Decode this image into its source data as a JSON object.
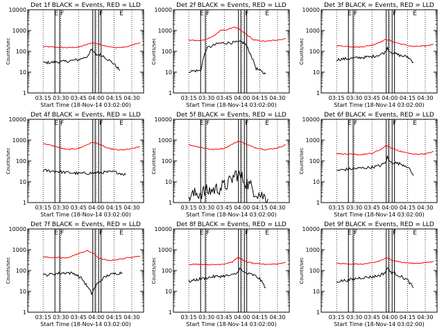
{
  "start_time_label": "Start Time (18-Nov-14 03:02:00)",
  "ylabel": "Counts/sec",
  "colors": {
    "events": "#000000",
    "lld": "#ff0000",
    "axis": "#000000"
  },
  "time_ticks": [
    "03:15",
    "03:30",
    "03:45",
    "04:00",
    "04:15",
    "04:30"
  ],
  "y_ticks": [
    "1",
    "10",
    "100",
    "1000",
    "10000"
  ],
  "chart_data": [
    {
      "type": "line",
      "title": "Det 1f BLACK = Events, RED = LLD",
      "xlabel": "Start Time (18-Nov-14 03:02:00)",
      "ylabel": "Counts/sec",
      "y_scale": "log",
      "xlim": [
        "03:02",
        "04:40"
      ],
      "ylim": [
        1,
        10000
      ],
      "grid": "dotted vertical lines at each time tick",
      "event_markers": [
        "03:25",
        "03:29",
        "03:57",
        "03:59",
        "04:02",
        "04:04"
      ],
      "segment_letters": [
        "E",
        "F",
        "F",
        "E"
      ],
      "series": [
        {
          "x": [
            "03:15",
            "03:25",
            "03:35",
            "03:45",
            "03:52",
            "03:56",
            "04:00",
            "04:05",
            "04:15",
            "04:25",
            "04:37"
          ],
          "y": [
            170,
            160,
            150,
            160,
            210,
            260,
            240,
            200,
            150,
            160,
            260
          ]
        },
        {
          "x": [
            "03:15",
            "03:25",
            "03:35",
            "03:45",
            "03:52",
            "03:56",
            "03:58",
            "04:00",
            "04:05",
            "04:10",
            "04:15",
            "04:20"
          ],
          "y": [
            28,
            30,
            33,
            40,
            55,
            120,
            85,
            70,
            65,
            40,
            25,
            12
          ]
        }
      ]
    },
    {
      "type": "line",
      "title": "Det 2f BLACK = Events, RED = LLD",
      "xlabel": "Start Time (18-Nov-14 03:02:00)",
      "ylabel": "Counts/sec",
      "y_scale": "log",
      "xlim": [
        "03:02",
        "04:40"
      ],
      "ylim": [
        1,
        10000
      ],
      "grid": "dotted vertical lines at each time tick",
      "event_markers": [
        "03:25",
        "03:29",
        "03:57",
        "03:59",
        "04:02",
        "04:04"
      ],
      "segment_letters": [
        "E",
        "F",
        "F",
        "E"
      ],
      "series": [
        {
          "x": [
            "03:15",
            "03:25",
            "03:35",
            "03:42",
            "03:48",
            "03:53",
            "03:58",
            "04:03",
            "04:10",
            "04:20",
            "04:37"
          ],
          "y": [
            350,
            320,
            500,
            1000,
            1100,
            1500,
            1100,
            700,
            350,
            300,
            400
          ]
        },
        {
          "x": [
            "03:15",
            "03:25",
            "03:27",
            "03:30",
            "03:40",
            "03:50",
            "04:00",
            "04:03",
            "04:08",
            "04:12",
            "04:20"
          ],
          "y": [
            11,
            12,
            40,
            140,
            240,
            260,
            280,
            220,
            60,
            15,
            8
          ]
        }
      ]
    },
    {
      "type": "line",
      "title": "Det 3f BLACK = Events, RED = LLD",
      "xlabel": "Start Time (18-Nov-14 03:02:00)",
      "ylabel": "Counts/sec",
      "y_scale": "log",
      "xlim": [
        "03:02",
        "04:40"
      ],
      "ylim": [
        1,
        10000
      ],
      "grid": "dotted vertical lines at each time tick",
      "event_markers": [
        "03:25",
        "03:29",
        "03:57",
        "03:59",
        "04:02",
        "04:04"
      ],
      "segment_letters": [
        "E",
        "F",
        "F",
        "E"
      ],
      "series": [
        {
          "x": [
            "03:15",
            "03:25",
            "03:35",
            "03:45",
            "03:52",
            "03:57",
            "04:02",
            "04:10",
            "04:20",
            "04:30",
            "04:37"
          ],
          "y": [
            190,
            170,
            160,
            200,
            280,
            380,
            300,
            220,
            170,
            180,
            220
          ]
        },
        {
          "x": [
            "03:15",
            "03:25",
            "03:35",
            "03:45",
            "03:52",
            "03:56",
            "03:58",
            "04:00",
            "04:05",
            "04:10",
            "04:15",
            "04:20"
          ],
          "y": [
            40,
            45,
            50,
            55,
            70,
            90,
            150,
            100,
            75,
            60,
            55,
            30
          ]
        }
      ]
    },
    {
      "type": "line",
      "title": "Det 4f BLACK = Events, RED = LLD",
      "xlabel": "Start Time (18-Nov-14 03:02:00)",
      "ylabel": "Counts/sec",
      "y_scale": "log",
      "xlim": [
        "03:02",
        "04:40"
      ],
      "ylim": [
        1,
        10000
      ],
      "grid": "dotted vertical lines at each time tick",
      "event_markers": [
        "03:25",
        "03:29",
        "03:57",
        "03:59",
        "04:02",
        "04:04"
      ],
      "segment_letters": [
        "E",
        "F",
        "F",
        "E"
      ],
      "series": [
        {
          "x": [
            "03:15",
            "03:25",
            "03:35",
            "03:45",
            "03:52",
            "03:57",
            "04:02",
            "04:10",
            "04:20",
            "04:30",
            "04:37"
          ],
          "y": [
            700,
            500,
            350,
            400,
            600,
            800,
            650,
            400,
            330,
            380,
            500
          ]
        },
        {
          "x": [
            "03:15",
            "03:25",
            "03:35",
            "03:45",
            "03:55",
            "04:05",
            "04:15",
            "04:25"
          ],
          "y": [
            35,
            32,
            28,
            25,
            26,
            28,
            30,
            22
          ]
        }
      ]
    },
    {
      "type": "line",
      "title": "Det 5f BLACK = Events, RED = LLD",
      "xlabel": "Start Time (18-Nov-14 03:02:00)",
      "ylabel": "Counts/sec",
      "y_scale": "log",
      "xlim": [
        "03:02",
        "04:40"
      ],
      "ylim": [
        1,
        10000
      ],
      "grid": "dotted vertical lines at each time tick",
      "event_markers": [
        "03:25",
        "03:29",
        "03:57",
        "03:59",
        "04:02",
        "04:04"
      ],
      "segment_letters": [
        "E",
        "F",
        "F",
        "E"
      ],
      "series": [
        {
          "x": [
            "03:15",
            "03:25",
            "03:35",
            "03:45",
            "03:52",
            "03:57",
            "04:02",
            "04:10",
            "04:20",
            "04:30",
            "04:37"
          ],
          "y": [
            600,
            450,
            350,
            400,
            650,
            900,
            700,
            450,
            350,
            420,
            600
          ]
        },
        {
          "x": [
            "03:15",
            "03:25",
            "03:35",
            "03:45",
            "03:50",
            "03:55",
            "04:00",
            "04:05",
            "04:10",
            "04:15",
            "04:22"
          ],
          "y": [
            2,
            3,
            4,
            6,
            10,
            25,
            15,
            8,
            4,
            2.5,
            1.5
          ]
        }
      ]
    },
    {
      "type": "line",
      "title": "Det 6f BLACK = Events, RED = LLD",
      "xlabel": "Start Time (18-Nov-14 03:02:00)",
      "ylabel": "Counts/sec",
      "y_scale": "log",
      "xlim": [
        "03:02",
        "04:40"
      ],
      "ylim": [
        1,
        10000
      ],
      "grid": "dotted vertical lines at each time tick",
      "event_markers": [
        "03:25",
        "03:29",
        "03:57",
        "03:59",
        "04:02",
        "04:04"
      ],
      "segment_letters": [
        "E",
        "F",
        "F",
        "E"
      ],
      "series": [
        {
          "x": [
            "03:15",
            "03:25",
            "03:35",
            "03:45",
            "03:52",
            "03:57",
            "04:02",
            "04:10",
            "04:20",
            "04:30",
            "04:37"
          ],
          "y": [
            230,
            210,
            200,
            230,
            350,
            550,
            400,
            280,
            210,
            220,
            280
          ]
        },
        {
          "x": [
            "03:15",
            "03:25",
            "03:35",
            "03:45",
            "03:52",
            "03:56",
            "03:58",
            "04:00",
            "04:05",
            "04:10",
            "04:15",
            "04:20"
          ],
          "y": [
            35,
            40,
            45,
            50,
            60,
            80,
            150,
            90,
            80,
            70,
            55,
            20
          ]
        }
      ]
    },
    {
      "type": "line",
      "title": "Det 7f BLACK = Events, RED = LLD",
      "xlabel": "Start Time (18-Nov-14 03:02:00)",
      "ylabel": "Counts/sec",
      "y_scale": "log",
      "xlim": [
        "03:02",
        "04:40"
      ],
      "ylim": [
        1,
        10000
      ],
      "grid": "dotted vertical lines at each time tick",
      "event_markers": [
        "03:25",
        "03:29",
        "03:57",
        "03:59",
        "04:02",
        "04:04"
      ],
      "segment_letters": [
        "E",
        "F",
        "F",
        "E"
      ],
      "series": [
        {
          "x": [
            "03:15",
            "03:25",
            "03:35",
            "03:45",
            "03:52",
            "03:57",
            "04:02",
            "04:10",
            "04:20",
            "04:30",
            "04:37"
          ],
          "y": [
            450,
            420,
            400,
            650,
            900,
            700,
            400,
            300,
            350,
            450,
            500
          ]
        },
        {
          "x": [
            "03:15",
            "03:25",
            "03:35",
            "03:42",
            "03:48",
            "03:53",
            "03:56",
            "04:00",
            "04:05",
            "04:10",
            "04:15",
            "04:22"
          ],
          "y": [
            60,
            70,
            80,
            70,
            40,
            15,
            8,
            20,
            40,
            60,
            70,
            80
          ]
        }
      ]
    },
    {
      "type": "line",
      "title": "Det 8f BLACK = Events, RED = LLD",
      "xlabel": "Start Time (18-Nov-14 03:02:00)",
      "ylabel": "Counts/sec",
      "y_scale": "log",
      "xlim": [
        "03:02",
        "04:40"
      ],
      "ylim": [
        1,
        10000
      ],
      "grid": "dotted vertical lines at each time tick",
      "event_markers": [
        "03:25",
        "03:29",
        "03:57",
        "03:59",
        "04:02",
        "04:04"
      ],
      "segment_letters": [
        "E",
        "F",
        "F",
        "E"
      ],
      "series": [
        {
          "x": [
            "03:15",
            "03:25",
            "03:35",
            "03:45",
            "03:52",
            "03:57",
            "04:02",
            "04:10",
            "04:20",
            "04:30",
            "04:37"
          ],
          "y": [
            200,
            200,
            190,
            210,
            260,
            450,
            280,
            220,
            200,
            210,
            250
          ]
        },
        {
          "x": [
            "03:15",
            "03:25",
            "03:35",
            "03:45",
            "03:52",
            "03:56",
            "03:58",
            "04:00",
            "04:05",
            "04:10",
            "04:15",
            "04:20"
          ],
          "y": [
            30,
            40,
            50,
            55,
            60,
            75,
            150,
            90,
            70,
            60,
            40,
            15
          ]
        }
      ]
    },
    {
      "type": "line",
      "title": "Det 9f BLACK = Events, RED = LLD",
      "xlabel": "Start Time (18-Nov-14 03:02:00)",
      "ylabel": "Counts/sec",
      "y_scale": "log",
      "xlim": [
        "03:02",
        "04:40"
      ],
      "ylim": [
        1,
        10000
      ],
      "grid": "dotted vertical lines at each time tick",
      "event_markers": [
        "03:25",
        "03:29",
        "03:57",
        "03:59",
        "04:02",
        "04:04"
      ],
      "segment_letters": [
        "E",
        "F",
        "F",
        "E"
      ],
      "series": [
        {
          "x": [
            "03:15",
            "03:25",
            "03:35",
            "03:45",
            "03:52",
            "03:57",
            "04:02",
            "04:10",
            "04:20",
            "04:30",
            "04:37"
          ],
          "y": [
            220,
            210,
            200,
            230,
            300,
            400,
            320,
            250,
            220,
            240,
            270
          ]
        },
        {
          "x": [
            "03:15",
            "03:25",
            "03:35",
            "03:45",
            "03:52",
            "03:56",
            "03:58",
            "04:00",
            "04:05",
            "04:10",
            "04:15",
            "04:20"
          ],
          "y": [
            30,
            35,
            45,
            50,
            60,
            80,
            140,
            90,
            70,
            50,
            35,
            15
          ]
        }
      ]
    }
  ]
}
